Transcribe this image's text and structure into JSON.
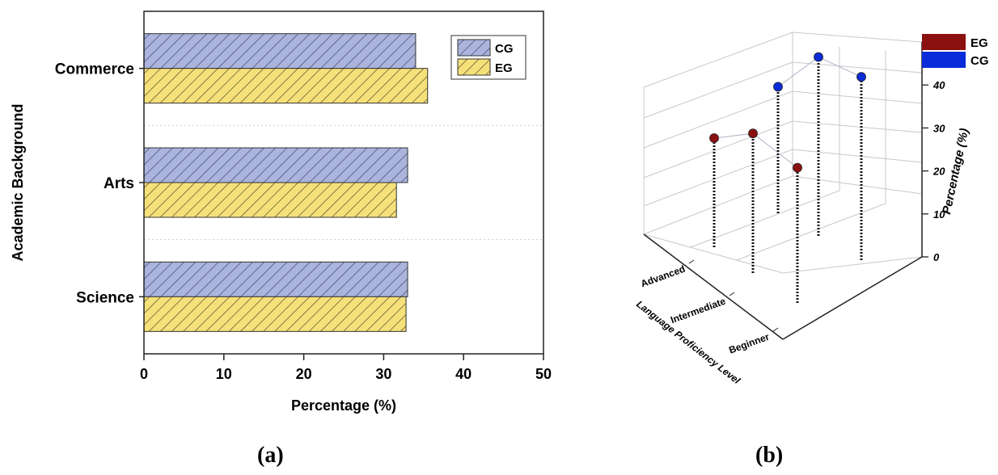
{
  "panels": {
    "a": "(a)",
    "b": "(b)"
  },
  "chart_data": [
    {
      "type": "bar",
      "orientation": "horizontal",
      "categories": [
        "Science",
        "Arts",
        "Commerce"
      ],
      "series": [
        {
          "name": "CG",
          "values": [
            33,
            33,
            34
          ],
          "color": "#aab4dc",
          "hatch": "diagonal"
        },
        {
          "name": "EG",
          "values": [
            32.8,
            31.6,
            35.5
          ],
          "color": "#f5e07a",
          "hatch": "diagonal"
        }
      ],
      "xlabel": "Percentage (%)",
      "ylabel": "Academic Background",
      "xlim": [
        0,
        50
      ],
      "xticks": [
        0,
        10,
        20,
        30,
        40,
        50
      ],
      "grid": "horizontal-dotted",
      "legend_position": "top-right"
    },
    {
      "type": "scatter",
      "subtype": "3d-drop-line",
      "categories": [
        "Advanced",
        "Intermediate",
        "Beginner"
      ],
      "series": [
        {
          "name": "EG",
          "color": "#8b1010",
          "values": [
            25,
            32,
            31
          ]
        },
        {
          "name": "CG",
          "color": "#0a2bd8",
          "values": [
            29,
            41,
            42
          ]
        }
      ],
      "xlabel": "Language Proficiency Level",
      "zlabel": "Percentage (%)",
      "zlim": [
        0,
        50
      ],
      "zticks": [
        0,
        10,
        20,
        30,
        40,
        50
      ],
      "legend_position": "top-right"
    }
  ]
}
